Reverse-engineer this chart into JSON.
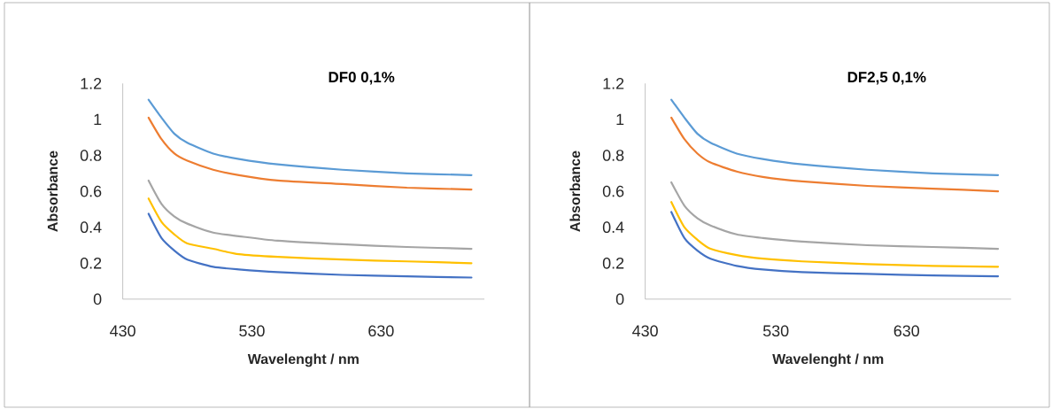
{
  "chart_data": [
    {
      "type": "line",
      "title": "DF0 0,1%",
      "xlabel": "Wavelenght / nm",
      "ylabel": "Absorbance",
      "x": [
        450,
        460,
        470,
        480,
        500,
        520,
        550,
        600,
        650,
        700
      ],
      "xlim": [
        430,
        710
      ],
      "xticks": [
        430,
        530,
        630
      ],
      "ylim": [
        0,
        1.2
      ],
      "yticks": [
        0,
        0.2,
        0.4,
        0.6,
        0.8,
        1,
        1.2
      ],
      "grid": false,
      "series": [
        {
          "color": "#4472c4",
          "values": [
            0.475,
            0.34,
            0.27,
            0.22,
            0.18,
            0.165,
            0.15,
            0.135,
            0.127,
            0.12
          ]
        },
        {
          "color": "#ed7d31",
          "values": [
            1.01,
            0.89,
            0.81,
            0.77,
            0.72,
            0.69,
            0.66,
            0.64,
            0.62,
            0.61
          ]
        },
        {
          "color": "#a5a5a5",
          "values": [
            0.66,
            0.53,
            0.46,
            0.42,
            0.37,
            0.35,
            0.325,
            0.305,
            0.29,
            0.28
          ]
        },
        {
          "color": "#ffc000",
          "values": [
            0.56,
            0.43,
            0.36,
            0.31,
            0.28,
            0.25,
            0.235,
            0.22,
            0.21,
            0.2
          ]
        },
        {
          "color": "#5b9bd5",
          "values": [
            1.11,
            1.01,
            0.92,
            0.87,
            0.81,
            0.78,
            0.75,
            0.72,
            0.7,
            0.69
          ]
        }
      ]
    },
    {
      "type": "line",
      "title": "DF2,5 0,1%",
      "xlabel": "Wavelenght / nm",
      "ylabel": "Absorbance",
      "x": [
        450,
        460,
        470,
        480,
        500,
        520,
        550,
        600,
        650,
        700
      ],
      "xlim": [
        430,
        710
      ],
      "xticks": [
        430,
        530,
        630
      ],
      "ylim": [
        0,
        1.2
      ],
      "yticks": [
        0,
        0.2,
        0.4,
        0.6,
        0.8,
        1,
        1.2
      ],
      "grid": false,
      "series": [
        {
          "color": "#4472c4",
          "values": [
            0.485,
            0.34,
            0.27,
            0.225,
            0.185,
            0.165,
            0.15,
            0.14,
            0.132,
            0.127
          ]
        },
        {
          "color": "#ed7d31",
          "values": [
            1.01,
            0.89,
            0.81,
            0.76,
            0.71,
            0.68,
            0.655,
            0.63,
            0.615,
            0.6
          ]
        },
        {
          "color": "#a5a5a5",
          "values": [
            0.65,
            0.52,
            0.45,
            0.41,
            0.36,
            0.34,
            0.32,
            0.3,
            0.29,
            0.28
          ]
        },
        {
          "color": "#ffc000",
          "values": [
            0.54,
            0.4,
            0.33,
            0.28,
            0.245,
            0.225,
            0.21,
            0.195,
            0.185,
            0.18
          ]
        },
        {
          "color": "#5b9bd5",
          "values": [
            1.11,
            1.01,
            0.92,
            0.87,
            0.81,
            0.78,
            0.75,
            0.72,
            0.7,
            0.69
          ]
        }
      ]
    }
  ]
}
